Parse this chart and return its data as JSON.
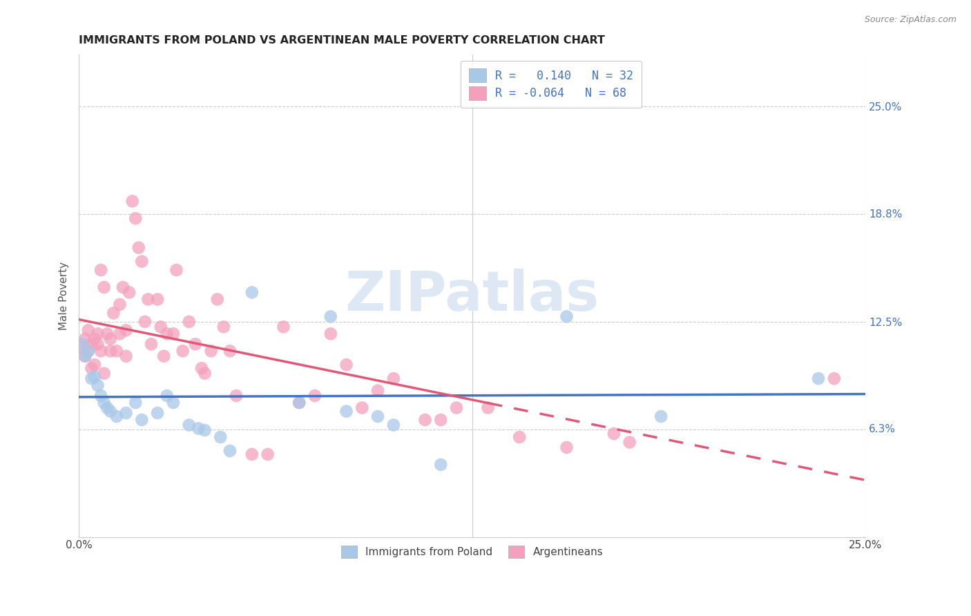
{
  "title": "IMMIGRANTS FROM POLAND VS ARGENTINEAN MALE POVERTY CORRELATION CHART",
  "source": "Source: ZipAtlas.com",
  "ylabel": "Male Poverty",
  "xmin": 0.0,
  "xmax": 0.25,
  "ymin": 0.0,
  "ymax": 0.28,
  "color_blue": "#a8c8e8",
  "color_pink": "#f4a0bc",
  "line_blue": "#4472c4",
  "line_pink": "#e05878",
  "watermark_color": "#dde8f4",
  "poland_r": 0.14,
  "poland_n": 32,
  "arg_r": -0.064,
  "arg_n": 68,
  "poland_x": [
    0.001,
    0.002,
    0.003,
    0.004,
    0.005,
    0.006,
    0.007,
    0.008,
    0.009,
    0.01,
    0.012,
    0.015,
    0.018,
    0.02,
    0.025,
    0.028,
    0.03,
    0.035,
    0.038,
    0.04,
    0.045,
    0.048,
    0.055,
    0.07,
    0.08,
    0.085,
    0.095,
    0.1,
    0.115,
    0.155,
    0.185,
    0.235
  ],
  "poland_y": [
    0.112,
    0.105,
    0.108,
    0.092,
    0.093,
    0.088,
    0.082,
    0.078,
    0.075,
    0.073,
    0.07,
    0.072,
    0.078,
    0.068,
    0.072,
    0.082,
    0.078,
    0.065,
    0.063,
    0.062,
    0.058,
    0.05,
    0.142,
    0.078,
    0.128,
    0.073,
    0.07,
    0.065,
    0.042,
    0.128,
    0.07,
    0.092
  ],
  "arg_x": [
    0.001,
    0.002,
    0.002,
    0.003,
    0.003,
    0.004,
    0.004,
    0.005,
    0.005,
    0.006,
    0.006,
    0.007,
    0.007,
    0.008,
    0.008,
    0.009,
    0.01,
    0.01,
    0.011,
    0.012,
    0.013,
    0.013,
    0.014,
    0.015,
    0.015,
    0.016,
    0.017,
    0.018,
    0.019,
    0.02,
    0.021,
    0.022,
    0.023,
    0.025,
    0.026,
    0.027,
    0.028,
    0.03,
    0.031,
    0.033,
    0.035,
    0.037,
    0.039,
    0.04,
    0.042,
    0.044,
    0.046,
    0.048,
    0.05,
    0.055,
    0.06,
    0.065,
    0.07,
    0.075,
    0.08,
    0.085,
    0.09,
    0.095,
    0.1,
    0.11,
    0.115,
    0.12,
    0.13,
    0.14,
    0.155,
    0.17,
    0.175,
    0.24
  ],
  "arg_y": [
    0.11,
    0.115,
    0.105,
    0.108,
    0.12,
    0.098,
    0.112,
    0.115,
    0.1,
    0.118,
    0.112,
    0.155,
    0.108,
    0.145,
    0.095,
    0.118,
    0.115,
    0.108,
    0.13,
    0.108,
    0.135,
    0.118,
    0.145,
    0.12,
    0.105,
    0.142,
    0.195,
    0.185,
    0.168,
    0.16,
    0.125,
    0.138,
    0.112,
    0.138,
    0.122,
    0.105,
    0.118,
    0.118,
    0.155,
    0.108,
    0.125,
    0.112,
    0.098,
    0.095,
    0.108,
    0.138,
    0.122,
    0.108,
    0.082,
    0.048,
    0.048,
    0.122,
    0.078,
    0.082,
    0.118,
    0.1,
    0.075,
    0.085,
    0.092,
    0.068,
    0.068,
    0.075,
    0.075,
    0.058,
    0.052,
    0.06,
    0.055,
    0.092
  ]
}
